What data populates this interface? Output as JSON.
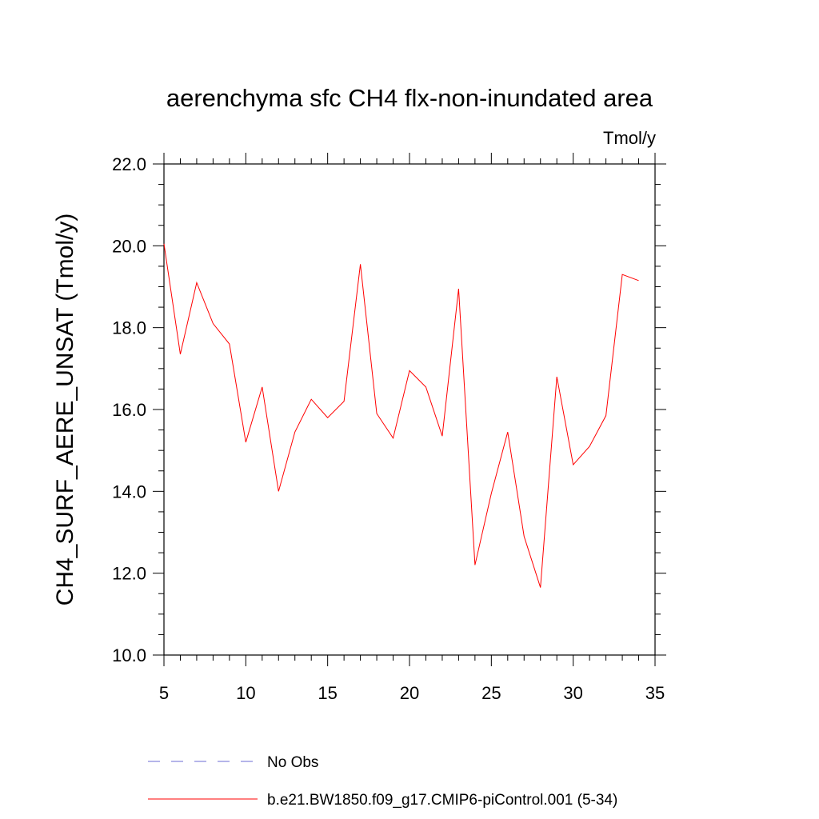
{
  "chart_data": {
    "type": "line",
    "title": "aerenchyma sfc CH4 flx-non-inundated area",
    "units_label": "Tmol/y",
    "ylabel": "CH4_SURF_AERE_UNSAT  (Tmol/y)",
    "xlim": [
      5,
      35
    ],
    "ylim": [
      10.0,
      22.0
    ],
    "x_ticks": [
      "5",
      "10",
      "15",
      "20",
      "25",
      "30",
      "35"
    ],
    "y_ticks": [
      "10.0",
      "12.0",
      "14.0",
      "16.0",
      "18.0",
      "20.0",
      "22.0"
    ],
    "grid": false,
    "legend_position": "bottom",
    "series": [
      {
        "name": "b.e21.BW1850.f09_g17.CMIP6-piControl.001 (5-34)",
        "color": "#ff0000",
        "style": "solid",
        "x": [
          5,
          6,
          7,
          8,
          9,
          10,
          11,
          12,
          13,
          14,
          15,
          16,
          17,
          18,
          19,
          20,
          21,
          22,
          23,
          24,
          25,
          26,
          27,
          28,
          29,
          30,
          31,
          32,
          33,
          34
        ],
        "values": [
          20.05,
          17.35,
          19.1,
          18.1,
          17.6,
          15.2,
          16.55,
          14.0,
          15.45,
          16.25,
          15.8,
          16.2,
          19.55,
          15.9,
          15.3,
          16.95,
          16.55,
          15.35,
          18.95,
          12.2,
          13.95,
          15.45,
          12.9,
          11.65,
          16.8,
          14.65,
          15.1,
          15.85,
          19.3,
          19.15
        ]
      }
    ],
    "legend": [
      {
        "label": "No Obs",
        "color": "#6b6bd6",
        "style": "dashed"
      },
      {
        "label": "b.e21.BW1850.f09_g17.CMIP6-piControl.001 (5-34)",
        "color": "#ff0000",
        "style": "solid"
      }
    ]
  }
}
